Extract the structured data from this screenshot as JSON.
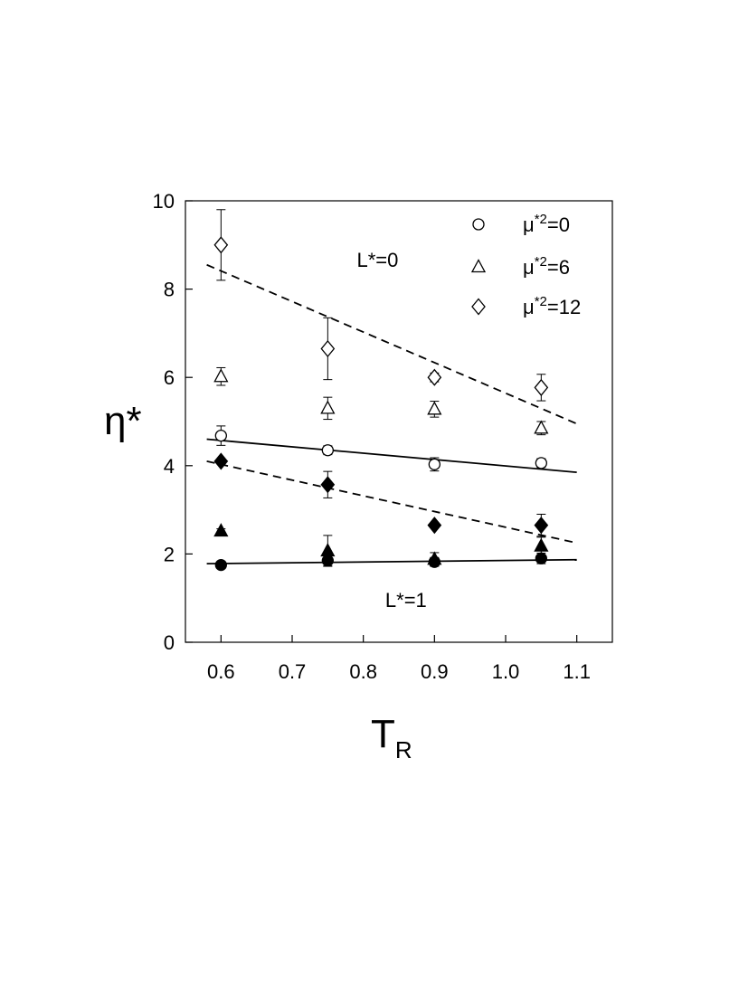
{
  "chart_data": {
    "type": "scatter",
    "xlabel": {
      "main": "T",
      "sub": "R"
    },
    "ylabel": "η*",
    "xlim": [
      0.55,
      1.15
    ],
    "ylim": [
      0,
      10
    ],
    "xticks": [
      "0.6",
      "0.7",
      "0.8",
      "0.9",
      "1.0",
      "1.1"
    ],
    "yticks": [
      "0",
      "2",
      "4",
      "6",
      "8",
      "10"
    ],
    "grid": false,
    "legend_position": "top-right",
    "legend": [
      {
        "marker": "circle",
        "text_main": "μ",
        "text_sup": "*2",
        "text_tail": "=0"
      },
      {
        "marker": "triangle",
        "text_main": "μ",
        "text_sup": "*2",
        "text_tail": "=6"
      },
      {
        "marker": "diamond",
        "text_main": "μ",
        "text_sup": "*2",
        "text_tail": "=12"
      }
    ],
    "annotations": [
      {
        "text": "L*=0",
        "x": 0.82,
        "y": 8.5
      },
      {
        "text": "L*=1",
        "x": 0.86,
        "y": 0.8
      }
    ],
    "series": [
      {
        "marker": "circle",
        "fill": "open",
        "group": "L*=0",
        "x": [
          0.6,
          0.75,
          0.9,
          1.05
        ],
        "y": [
          4.68,
          4.35,
          4.03,
          4.06
        ],
        "err": [
          0.22,
          0.1,
          0.15,
          0.1
        ]
      },
      {
        "marker": "triangle",
        "fill": "open",
        "group": "L*=0",
        "x": [
          0.6,
          0.75,
          0.9,
          1.05
        ],
        "y": [
          6.02,
          5.3,
          5.28,
          4.85
        ],
        "err": [
          0.2,
          0.25,
          0.18,
          0.15
        ]
      },
      {
        "marker": "diamond",
        "fill": "open",
        "group": "L*=0",
        "x": [
          0.6,
          0.75,
          0.9,
          1.05
        ],
        "y": [
          9.0,
          6.65,
          6.0,
          5.77
        ],
        "err": [
          0.8,
          0.7,
          0.1,
          0.3
        ]
      },
      {
        "marker": "circle",
        "fill": "solid",
        "group": "L*=1",
        "x": [
          0.6,
          0.75,
          0.9,
          1.05
        ],
        "y": [
          1.75,
          1.85,
          1.82,
          1.9
        ],
        "err": [
          0.03,
          0.12,
          0.1,
          0.12
        ]
      },
      {
        "marker": "triangle",
        "fill": "solid",
        "group": "L*=1",
        "x": [
          0.6,
          0.75,
          0.9,
          1.05
        ],
        "y": [
          2.52,
          2.07,
          1.88,
          2.18
        ],
        "err": [
          0.05,
          0.35,
          0.15,
          0.2
        ]
      },
      {
        "marker": "diamond",
        "fill": "solid",
        "group": "L*=1",
        "x": [
          0.6,
          0.75,
          0.9,
          1.05
        ],
        "y": [
          4.1,
          3.57,
          2.65,
          2.65
        ],
        "err": [
          0.05,
          0.3,
          0.05,
          0.25
        ]
      }
    ],
    "fit_lines": [
      {
        "style": "dashed",
        "group": "L*=0",
        "x": [
          0.58,
          1.1
        ],
        "y": [
          8.55,
          4.95
        ]
      },
      {
        "style": "solid",
        "group": "L*=0",
        "x": [
          0.58,
          1.1
        ],
        "y": [
          4.6,
          3.85
        ]
      },
      {
        "style": "dashed",
        "group": "L*=1",
        "x": [
          0.58,
          1.1
        ],
        "y": [
          4.1,
          2.25
        ]
      },
      {
        "style": "solid",
        "group": "L*=1",
        "x": [
          0.58,
          1.1
        ],
        "y": [
          1.78,
          1.87
        ]
      }
    ]
  }
}
